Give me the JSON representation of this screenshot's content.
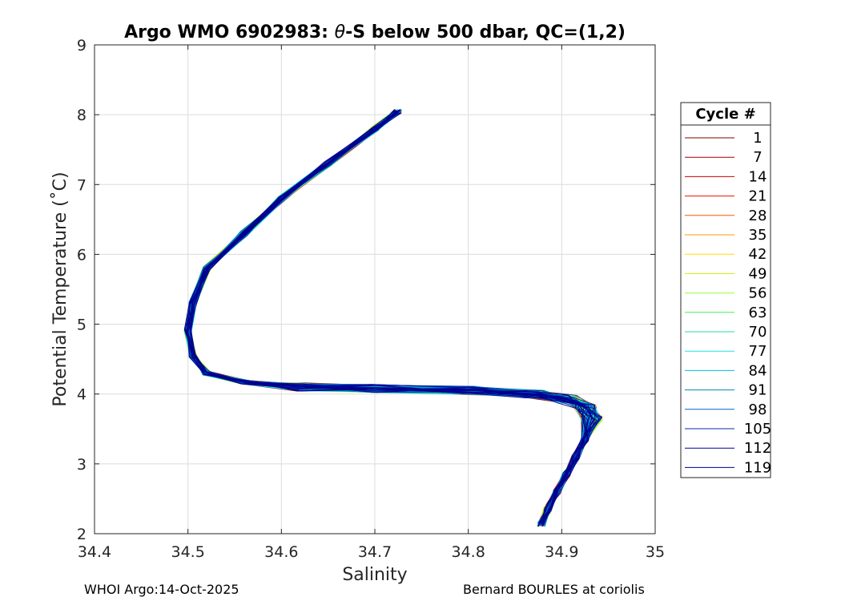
{
  "chart_data": {
    "type": "line",
    "title_prefix": "Argo WMO 6902983: ",
    "title_theta": "θ",
    "title_suffix": "-S below 500 dbar,  QC=(1,2)",
    "xlabel": "Salinity",
    "ylabel": "Potential Temperature (˚C)",
    "xlim": [
      34.4,
      35.0
    ],
    "ylim": [
      2,
      9
    ],
    "xticks": [
      "34.4",
      "34.5",
      "34.6",
      "34.7",
      "34.8",
      "34.9",
      "35"
    ],
    "xtick_values": [
      34.4,
      34.5,
      34.6,
      34.7,
      34.8,
      34.9,
      35.0
    ],
    "yticks": [
      "2",
      "3",
      "4",
      "5",
      "6",
      "7",
      "8",
      "9"
    ],
    "ytick_values": [
      2,
      3,
      4,
      5,
      6,
      7,
      8,
      9
    ],
    "grid": true,
    "legend_placement": "outside-right",
    "legend_title": "Cycle #",
    "legend": [
      {
        "name": "1",
        "color": "#800000"
      },
      {
        "name": "7",
        "color": "#a00000"
      },
      {
        "name": "14",
        "color": "#cc0000"
      },
      {
        "name": "21",
        "color": "#ee1100"
      },
      {
        "name": "28",
        "color": "#ff5500"
      },
      {
        "name": "35",
        "color": "#ff9900"
      },
      {
        "name": "42",
        "color": "#ffdd00"
      },
      {
        "name": "49",
        "color": "#ccee00"
      },
      {
        "name": "56",
        "color": "#99ff33"
      },
      {
        "name": "63",
        "color": "#44ee55"
      },
      {
        "name": "70",
        "color": "#22ddaa"
      },
      {
        "name": "77",
        "color": "#22ddee"
      },
      {
        "name": "84",
        "color": "#00bbdd"
      },
      {
        "name": "91",
        "color": "#0088bb"
      },
      {
        "name": "98",
        "color": "#0066cc"
      },
      {
        "name": "105",
        "color": "#0033aa"
      },
      {
        "name": "112",
        "color": "#000099"
      },
      {
        "name": "119",
        "color": "#00008b"
      }
    ],
    "base_profile": {
      "x": [
        34.725,
        34.7,
        34.65,
        34.6,
        34.56,
        34.52,
        34.505,
        34.5,
        34.505,
        34.52,
        34.56,
        34.62,
        34.7,
        34.8,
        34.87,
        34.905,
        34.925,
        34.932,
        34.925,
        34.915,
        34.905,
        34.895,
        34.885,
        34.878
      ],
      "y": [
        8.05,
        7.8,
        7.3,
        6.8,
        6.3,
        5.8,
        5.3,
        4.9,
        4.55,
        4.3,
        4.17,
        4.1,
        4.08,
        4.05,
        4.0,
        3.93,
        3.82,
        3.65,
        3.35,
        3.1,
        2.85,
        2.6,
        2.35,
        2.13
      ]
    }
  },
  "footer": {
    "left": "WHOI Argo:14-Oct-2025",
    "right": "Bernard BOURLES at coriolis"
  }
}
